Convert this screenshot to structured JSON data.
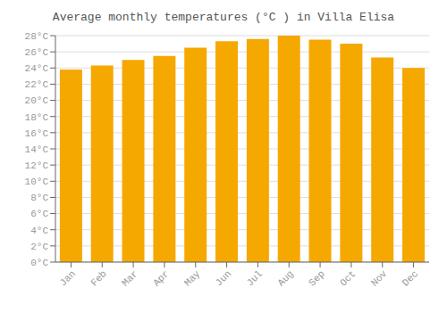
{
  "chart_data": {
    "type": "bar",
    "title": "Average monthly temperatures (°C ) in Villa Elisa",
    "categories": [
      "Jan",
      "Feb",
      "Mar",
      "Apr",
      "May",
      "Jun",
      "Jul",
      "Aug",
      "Sep",
      "Oct",
      "Nov",
      "Dec"
    ],
    "values": [
      23.8,
      24.3,
      25.0,
      25.5,
      26.5,
      27.3,
      27.6,
      28.0,
      27.5,
      27.0,
      25.3,
      24.0
    ],
    "color": "#F5A800",
    "ylim": [
      0,
      28
    ],
    "yticks": [
      {
        "value": 0,
        "label": "0°C"
      },
      {
        "value": 2,
        "label": "2°C"
      },
      {
        "value": 4,
        "label": "4°C"
      },
      {
        "value": 6,
        "label": "6°C"
      },
      {
        "value": 8,
        "label": "8°C"
      },
      {
        "value": 10,
        "label": "10°C"
      },
      {
        "value": 12,
        "label": "12°C"
      },
      {
        "value": 14,
        "label": "14°C"
      },
      {
        "value": 16,
        "label": "16°C"
      },
      {
        "value": 18,
        "label": "18°C"
      },
      {
        "value": 20,
        "label": "20°C"
      },
      {
        "value": 22,
        "label": "22°C"
      },
      {
        "value": 24,
        "label": "24°C"
      },
      {
        "value": 26,
        "label": "26°C"
      },
      {
        "value": 28,
        "label": "28°C"
      }
    ],
    "grid": true
  }
}
